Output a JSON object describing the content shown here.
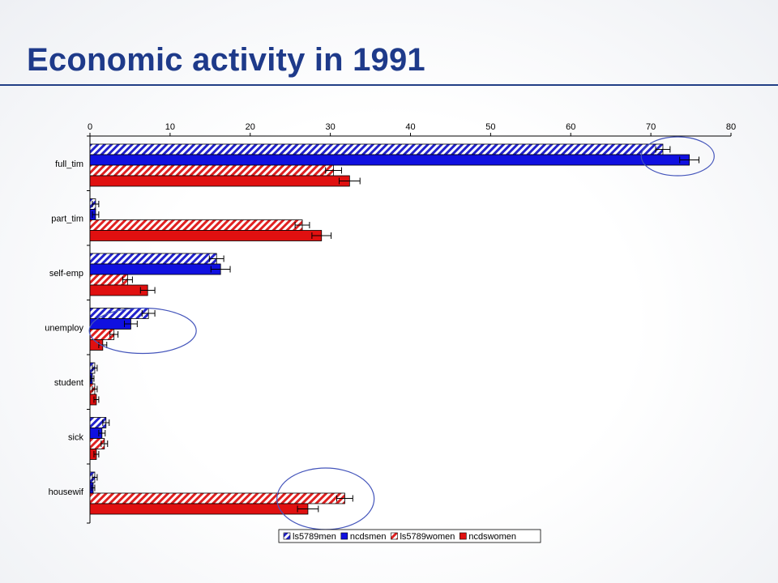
{
  "slide": {
    "title": "Economic activity in 1991"
  },
  "chart_data": {
    "type": "bar",
    "orientation": "horizontal",
    "categories": [
      "full_tim",
      "part_tim",
      "self-emp",
      "unemploy",
      "student",
      "sick",
      "housewif"
    ],
    "xlim": [
      0,
      80
    ],
    "x_ticks": [
      0,
      10,
      20,
      30,
      40,
      50,
      60,
      70,
      80
    ],
    "x_axis_position": "top",
    "grid": false,
    "legend_position": "bottom-right",
    "series": [
      {
        "name": "ls5789men",
        "values": [
          71.5,
          0.7,
          15.8,
          7.3,
          0.6,
          2.0,
          0.6
        ],
        "errors": [
          0.9,
          0.4,
          0.9,
          0.8,
          0.3,
          0.4,
          0.3
        ],
        "color": "#2222cc",
        "pattern": "hatch"
      },
      {
        "name": "ncdsmen",
        "values": [
          74.8,
          0.7,
          16.3,
          5.1,
          0.3,
          1.5,
          0.4
        ],
        "errors": [
          1.2,
          0.4,
          1.2,
          0.8,
          0.2,
          0.4,
          0.2
        ],
        "color": "#1010e0",
        "pattern": "solid"
      },
      {
        "name": "ls5789women",
        "values": [
          30.4,
          26.5,
          4.7,
          3.0,
          0.6,
          1.8,
          31.8
        ],
        "errors": [
          1.0,
          0.9,
          0.6,
          0.5,
          0.3,
          0.4,
          1.0
        ],
        "color": "#e02020",
        "pattern": "hatch"
      },
      {
        "name": "ncdswomen",
        "values": [
          32.4,
          28.9,
          7.2,
          1.6,
          0.8,
          0.8,
          27.2
        ],
        "errors": [
          1.3,
          1.2,
          0.9,
          0.5,
          0.3,
          0.3,
          1.3
        ],
        "color": "#e01010",
        "pattern": "solid"
      }
    ],
    "annotations": [
      {
        "type": "ellipse",
        "highlights": "full_tim men bars",
        "color": "#4455bb"
      },
      {
        "type": "ellipse",
        "highlights": "unemploy bars",
        "color": "#4455bb"
      },
      {
        "type": "ellipse",
        "highlights": "housewif women bars",
        "color": "#4455bb"
      }
    ]
  }
}
